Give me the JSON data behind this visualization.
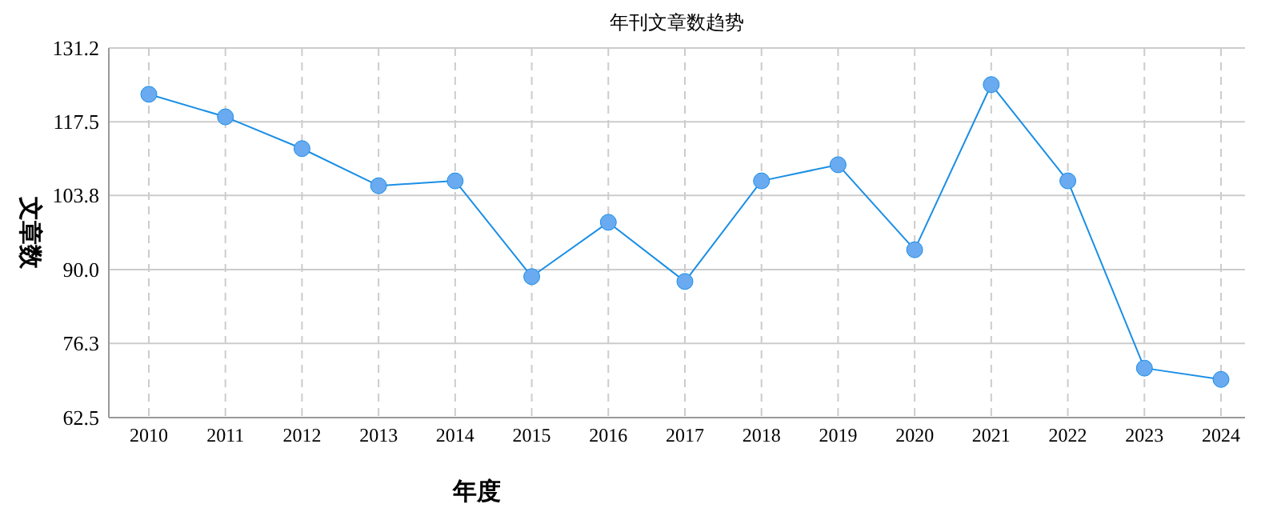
{
  "chart_data": {
    "type": "line",
    "title": "年刊文章数趋势",
    "xlabel": "年度",
    "ylabel": "文章数",
    "categories": [
      "2010",
      "2011",
      "2012",
      "2013",
      "2014",
      "2015",
      "2016",
      "2017",
      "2018",
      "2019",
      "2020",
      "2021",
      "2022",
      "2023",
      "2024"
    ],
    "series": [
      {
        "color": "#1a8fe6",
        "values": [
          122.6,
          118.4,
          112.5,
          105.6,
          106.5,
          88.7,
          98.8,
          87.8,
          106.5,
          109.5,
          93.7,
          124.4,
          106.5,
          71.7,
          69.6
        ]
      }
    ],
    "ylim": [
      62.5,
      131.2
    ],
    "yticks": [
      62.5,
      76.3,
      {
        "value": 90,
        "label": "90.0"
      },
      103.8,
      117.5,
      131.2
    ],
    "grid": true,
    "marker": "circle",
    "line_style": "solid"
  }
}
